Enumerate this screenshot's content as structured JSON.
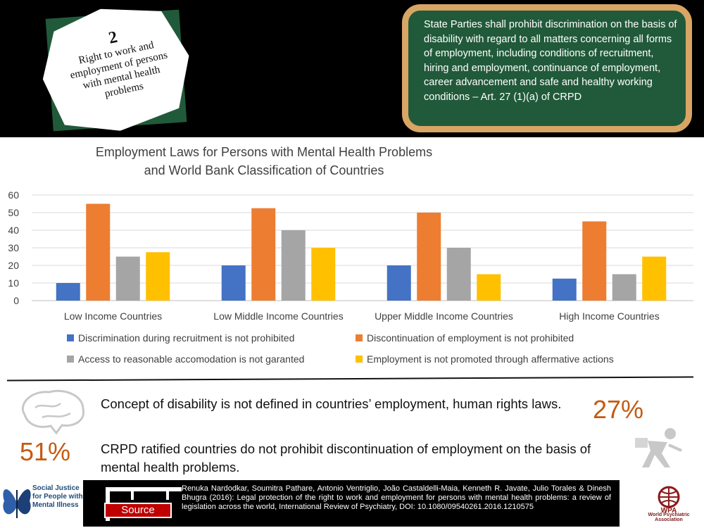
{
  "header": {
    "badge_number": "2",
    "badge_lines": [
      "Right to work and",
      "employment of persons",
      "with mental health",
      "problems"
    ],
    "quote_text": "State Parties shall prohibit discrimination on the basis of disability with regard to all matters concerning all forms of employment, including conditions of recruitment, hiring and employment, continuance of employment, career advancement and safe and healthy working conditions – Art. 27 (1)(a) of CRPD"
  },
  "chart_data": {
    "type": "bar",
    "title_lines": [
      "Employment Laws for Persons with Mental Health Problems",
      "and World Bank Classification of Countries"
    ],
    "categories": [
      "Low Income Countries",
      "Low Middle Income Countries",
      "Upper Middle Income Countries",
      "High Income Countries"
    ],
    "series": [
      {
        "name": "Discrimination during recruitment is not prohibited",
        "color": "#4472c4",
        "values": [
          10,
          20,
          20,
          12.5
        ]
      },
      {
        "name": "Discontinuation of employment is not prohibited",
        "color": "#ed7d31",
        "values": [
          55,
          52.5,
          50,
          45
        ]
      },
      {
        "name": "Access to reasonable accomodation is not garanted",
        "color": "#a5a5a5",
        "values": [
          25,
          40,
          30,
          15
        ]
      },
      {
        "name": "Employment is not promoted through affermative actions",
        "color": "#ffc000",
        "values": [
          27.5,
          30,
          15,
          25
        ]
      }
    ],
    "yticks": [
      "0",
      "10",
      "20",
      "30",
      "40",
      "50",
      "60"
    ],
    "ylim": [
      0,
      60
    ],
    "grid": true,
    "legend_position": "bottom"
  },
  "stats": [
    {
      "text": "Concept of disability is not defined in countries’ employment, human rights laws.",
      "percent": "27%"
    },
    {
      "text": "CRPD ratified countries do not prohibit discontinuation of employment on the basis of mental health problems.",
      "percent": "51%"
    }
  ],
  "footer": {
    "org_name": "Social Justice for People with Mental Illness",
    "source_label": "Source",
    "citation": "Renuka Nardodkar, Soumitra Pathare, Antonio Ventriglio, João Castaldelli-Maia, Kenneth R. Javate, Julio Torales & Dinesh Bhugra (2016): Legal protection of the right to work and employment for persons with mental health problems: a review of legislation across the world, International Review of Psychiatry, DOI: 10.1080/09540261.2016.1210575",
    "wpa_initials": "WPA",
    "wpa_name": "World Psychiatric Association"
  }
}
